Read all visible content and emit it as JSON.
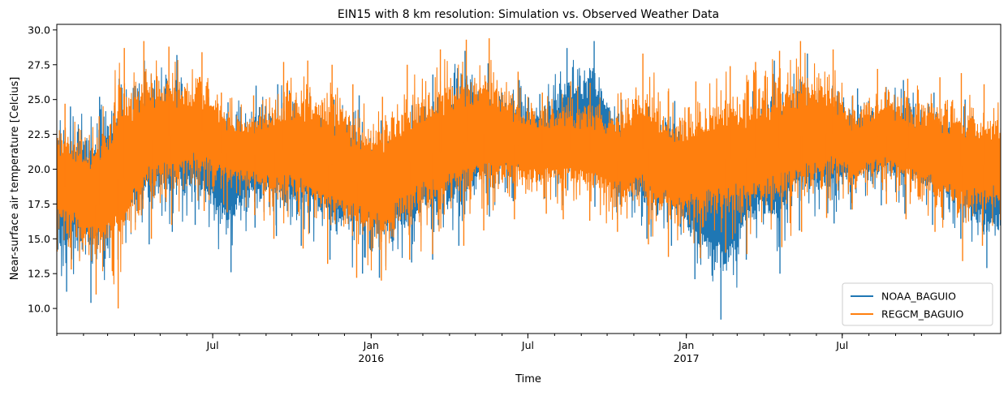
{
  "chart_data": {
    "type": "line",
    "title": "EIN15 with 8 km resolution: Simulation vs. Observed Weather Data",
    "xlabel": "Time",
    "ylabel": "Near-surface air temperature [Celcius]",
    "x_range": [
      "2015-01-01",
      "2017-12-31"
    ],
    "ylim": [
      8.2,
      30.4
    ],
    "yticks": [
      "10.0",
      "12.5",
      "15.0",
      "17.5",
      "20.0",
      "22.5",
      "25.0",
      "27.5",
      "30.0"
    ],
    "xticks": [
      {
        "date": "2015-07-01",
        "label": "Jul",
        "sublabel": ""
      },
      {
        "date": "2016-01-01",
        "label": "Jan",
        "sublabel": "2016"
      },
      {
        "date": "2016-07-01",
        "label": "Jul",
        "sublabel": ""
      },
      {
        "date": "2017-01-01",
        "label": "Jan",
        "sublabel": "2017"
      },
      {
        "date": "2017-07-01",
        "label": "Jul",
        "sublabel": ""
      }
    ],
    "grid": false,
    "legend_position": "lower-right",
    "series": [
      {
        "name": "NOAA_BAGUIO",
        "color": "#1f77b4",
        "sampling": "monthly envelope (min / max of hourly values)",
        "x": [
          "2015-01",
          "2015-02",
          "2015-03",
          "2015-04",
          "2015-05",
          "2015-06",
          "2015-07",
          "2015-08",
          "2015-09",
          "2015-10",
          "2015-11",
          "2015-12",
          "2016-01",
          "2016-02",
          "2016-03",
          "2016-04",
          "2016-05",
          "2016-06",
          "2016-07",
          "2016-08",
          "2016-09",
          "2016-10",
          "2016-11",
          "2016-12",
          "2017-01",
          "2017-02",
          "2017-03",
          "2017-04",
          "2017-05",
          "2017-06",
          "2017-07",
          "2017-08",
          "2017-09",
          "2017-10",
          "2017-11",
          "2017-12"
        ],
        "min": [
          11.2,
          10.4,
          13.5,
          14.6,
          15.5,
          16.0,
          12.6,
          15.8,
          15.2,
          14.5,
          13.5,
          12.5,
          12.2,
          13.3,
          13.5,
          14.5,
          16.6,
          17.7,
          17.9,
          17.4,
          17.3,
          16.4,
          15.0,
          14.5,
          12.1,
          9.2,
          13.5,
          12.5,
          15.6,
          16.1,
          17.1,
          17.4,
          16.8,
          16.0,
          15.0,
          12.9
        ],
        "max": [
          24.5,
          25.2,
          26.5,
          27.8,
          28.2,
          26.0,
          24.8,
          26.0,
          26.1,
          25.5,
          25.0,
          25.3,
          23.5,
          24.6,
          26.8,
          28.5,
          27.6,
          26.4,
          25.4,
          28.7,
          29.2,
          25.0,
          24.5,
          24.9,
          21.5,
          23.3,
          25.6,
          27.8,
          28.3,
          26.0,
          25.8,
          25.9,
          26.4,
          25.5,
          25.0,
          23.6
        ]
      },
      {
        "name": "REGCM_BAGUIO",
        "color": "#ff7f0e",
        "sampling": "monthly envelope (min / max of hourly values)",
        "x": [
          "2015-01",
          "2015-02",
          "2015-03",
          "2015-04",
          "2015-05",
          "2015-06",
          "2015-07",
          "2015-08",
          "2015-09",
          "2015-10",
          "2015-11",
          "2015-12",
          "2016-01",
          "2016-02",
          "2016-03",
          "2016-04",
          "2016-05",
          "2016-06",
          "2016-07",
          "2016-08",
          "2016-09",
          "2016-10",
          "2016-11",
          "2016-12",
          "2017-01",
          "2017-02",
          "2017-03",
          "2017-04",
          "2017-05",
          "2017-06",
          "2017-07",
          "2017-08",
          "2017-09",
          "2017-10",
          "2017-11",
          "2017-12"
        ],
        "min": [
          12.8,
          11.0,
          10.0,
          15.0,
          16.0,
          17.0,
          16.9,
          16.7,
          15.0,
          14.3,
          13.2,
          12.2,
          12.0,
          13.5,
          13.9,
          14.5,
          15.6,
          16.4,
          16.8,
          16.4,
          16.3,
          15.5,
          14.6,
          13.7,
          13.6,
          14.0,
          13.9,
          14.4,
          15.5,
          16.5,
          17.1,
          17.5,
          16.4,
          15.5,
          13.4,
          14.5
        ],
        "max": [
          24.7,
          23.8,
          28.7,
          29.2,
          28.8,
          28.4,
          25.5,
          25.3,
          27.7,
          27.8,
          27.5,
          26.1,
          25.2,
          27.5,
          28.6,
          29.3,
          29.4,
          27.0,
          25.5,
          26.3,
          26.2,
          25.5,
          28.3,
          25.6,
          26.3,
          27.4,
          27.7,
          28.5,
          29.2,
          28.6,
          25.3,
          27.2,
          26.5,
          26.6,
          26.9,
          26.1
        ]
      }
    ]
  }
}
